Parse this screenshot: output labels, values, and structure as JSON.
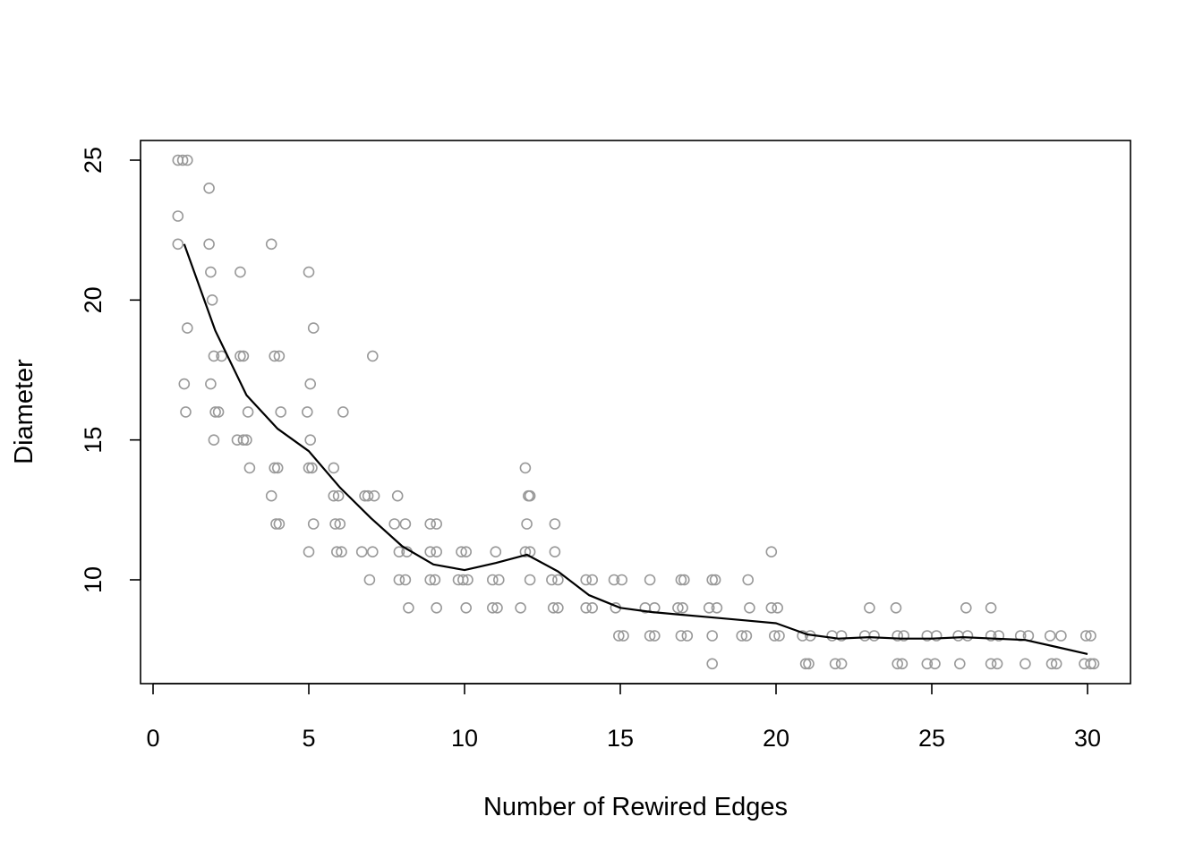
{
  "chart_data": {
    "type": "scatter",
    "title": "",
    "xlabel": "Number of Rewired Edges",
    "ylabel": "Diameter",
    "xlim": [
      0,
      30
    ],
    "ylim": [
      7,
      25.7
    ],
    "xticks": [
      0,
      5,
      10,
      15,
      20,
      25,
      30
    ],
    "yticks": [
      10,
      15,
      20,
      25
    ],
    "xtick_labels": [
      "0",
      "5",
      "10",
      "15",
      "20",
      "25",
      "30"
    ],
    "ytick_labels": [
      "10",
      "15",
      "20",
      "25"
    ],
    "grid": false,
    "legend": "none",
    "point_color": "#999999",
    "line_color": "#000000",
    "series": [
      {
        "type": "scatter",
        "points": [
          [
            0.8,
            25
          ],
          [
            0.95,
            25
          ],
          [
            1.1,
            25
          ],
          [
            0.8,
            23
          ],
          [
            0.8,
            22
          ],
          [
            1.0,
            17
          ],
          [
            1.05,
            16
          ],
          [
            1.1,
            19
          ],
          [
            1.8,
            24
          ],
          [
            1.8,
            22
          ],
          [
            1.85,
            21
          ],
          [
            1.9,
            20
          ],
          [
            1.85,
            17
          ],
          [
            1.95,
            18
          ],
          [
            2.0,
            16
          ],
          [
            2.1,
            16
          ],
          [
            2.2,
            18
          ],
          [
            1.95,
            15
          ],
          [
            2.8,
            21
          ],
          [
            2.8,
            18
          ],
          [
            2.9,
            18
          ],
          [
            2.7,
            15
          ],
          [
            2.9,
            15
          ],
          [
            3.0,
            15
          ],
          [
            3.05,
            16
          ],
          [
            3.1,
            14
          ],
          [
            3.8,
            22
          ],
          [
            3.8,
            13
          ],
          [
            3.9,
            14
          ],
          [
            4.0,
            14
          ],
          [
            4.1,
            16
          ],
          [
            3.9,
            18
          ],
          [
            4.05,
            18
          ],
          [
            3.95,
            12
          ],
          [
            4.05,
            12
          ],
          [
            5.0,
            21
          ],
          [
            5.05,
            17
          ],
          [
            4.95,
            16
          ],
          [
            5.0,
            14
          ],
          [
            5.1,
            14
          ],
          [
            5.05,
            15
          ],
          [
            5.15,
            19
          ],
          [
            5.0,
            11
          ],
          [
            5.15,
            12
          ],
          [
            5.8,
            14
          ],
          [
            5.8,
            13
          ],
          [
            5.95,
            13
          ],
          [
            5.85,
            12
          ],
          [
            6.0,
            12
          ],
          [
            5.9,
            11
          ],
          [
            6.05,
            11
          ],
          [
            6.1,
            16
          ],
          [
            6.8,
            13
          ],
          [
            6.9,
            13
          ],
          [
            7.1,
            13
          ],
          [
            6.7,
            11
          ],
          [
            7.05,
            11
          ],
          [
            6.95,
            10
          ],
          [
            7.05,
            18
          ],
          [
            7.85,
            13
          ],
          [
            7.75,
            12
          ],
          [
            8.1,
            12
          ],
          [
            7.9,
            11
          ],
          [
            8.15,
            11
          ],
          [
            7.9,
            10
          ],
          [
            8.1,
            10
          ],
          [
            8.2,
            9
          ],
          [
            8.9,
            12
          ],
          [
            9.1,
            12
          ],
          [
            8.9,
            11
          ],
          [
            9.1,
            11
          ],
          [
            8.9,
            10
          ],
          [
            9.05,
            10
          ],
          [
            9.1,
            9
          ],
          [
            9.9,
            11
          ],
          [
            10.05,
            11
          ],
          [
            9.8,
            10
          ],
          [
            9.95,
            10
          ],
          [
            10.1,
            10
          ],
          [
            10.05,
            9
          ],
          [
            11.0,
            11
          ],
          [
            10.9,
            10
          ],
          [
            11.1,
            10
          ],
          [
            10.9,
            9
          ],
          [
            11.05,
            9
          ],
          [
            11.95,
            14
          ],
          [
            12.05,
            13
          ],
          [
            12.1,
            13
          ],
          [
            12.0,
            12
          ],
          [
            11.95,
            11
          ],
          [
            12.1,
            11
          ],
          [
            12.1,
            10
          ],
          [
            11.8,
            9
          ],
          [
            12.9,
            12
          ],
          [
            12.9,
            11
          ],
          [
            12.8,
            10
          ],
          [
            13.0,
            10
          ],
          [
            12.85,
            9
          ],
          [
            13.0,
            9
          ],
          [
            13.9,
            10
          ],
          [
            14.1,
            10
          ],
          [
            13.9,
            9
          ],
          [
            14.1,
            9
          ],
          [
            14.8,
            10
          ],
          [
            15.05,
            10
          ],
          [
            14.85,
            9
          ],
          [
            14.95,
            8
          ],
          [
            15.1,
            8
          ],
          [
            15.95,
            10
          ],
          [
            15.8,
            9
          ],
          [
            16.1,
            9
          ],
          [
            15.95,
            8
          ],
          [
            16.1,
            8
          ],
          [
            16.95,
            10
          ],
          [
            17.05,
            10
          ],
          [
            16.85,
            9
          ],
          [
            17.0,
            9
          ],
          [
            16.95,
            8
          ],
          [
            17.15,
            8
          ],
          [
            17.95,
            10
          ],
          [
            18.05,
            10
          ],
          [
            17.85,
            9
          ],
          [
            18.1,
            9
          ],
          [
            17.95,
            8
          ],
          [
            17.95,
            7
          ],
          [
            19.1,
            10
          ],
          [
            19.15,
            9
          ],
          [
            18.9,
            8
          ],
          [
            19.05,
            8
          ],
          [
            19.85,
            11
          ],
          [
            19.85,
            9
          ],
          [
            20.05,
            9
          ],
          [
            19.95,
            8
          ],
          [
            20.1,
            8
          ],
          [
            20.85,
            8
          ],
          [
            21.1,
            8
          ],
          [
            20.95,
            7
          ],
          [
            21.05,
            7
          ],
          [
            21.8,
            8
          ],
          [
            22.1,
            8
          ],
          [
            21.9,
            7
          ],
          [
            22.1,
            7
          ],
          [
            23.0,
            9
          ],
          [
            22.85,
            8
          ],
          [
            23.15,
            8
          ],
          [
            23.85,
            9
          ],
          [
            23.9,
            8
          ],
          [
            24.1,
            8
          ],
          [
            23.9,
            7
          ],
          [
            24.05,
            7
          ],
          [
            24.85,
            8
          ],
          [
            25.15,
            8
          ],
          [
            24.85,
            7
          ],
          [
            25.1,
            7
          ],
          [
            25.85,
            8
          ],
          [
            26.15,
            8
          ],
          [
            26.1,
            9
          ],
          [
            25.9,
            7
          ],
          [
            26.9,
            9
          ],
          [
            26.9,
            8
          ],
          [
            27.15,
            8
          ],
          [
            26.9,
            7
          ],
          [
            27.1,
            7
          ],
          [
            27.85,
            8
          ],
          [
            28.1,
            8
          ],
          [
            28.0,
            7
          ],
          [
            28.8,
            8
          ],
          [
            29.15,
            8
          ],
          [
            28.85,
            7
          ],
          [
            29.0,
            7
          ],
          [
            29.95,
            8
          ],
          [
            30.1,
            8
          ],
          [
            29.9,
            7
          ],
          [
            30.1,
            7
          ],
          [
            30.2,
            7
          ]
        ]
      },
      {
        "type": "line",
        "x": [
          1,
          2,
          3,
          4,
          5,
          6,
          7,
          8,
          9,
          10,
          11,
          12,
          13,
          14,
          15,
          16,
          17,
          18,
          19,
          20,
          21,
          22,
          23,
          24,
          25,
          26,
          27,
          28,
          29,
          30
        ],
        "y": [
          22.0,
          18.9,
          16.6,
          15.4,
          14.6,
          13.3,
          12.2,
          11.2,
          10.55,
          10.35,
          10.6,
          10.9,
          10.3,
          9.45,
          9.0,
          8.85,
          8.75,
          8.65,
          8.55,
          8.45,
          8.05,
          7.9,
          7.95,
          7.9,
          7.9,
          7.95,
          7.9,
          7.85,
          7.6,
          7.35
        ]
      }
    ]
  }
}
